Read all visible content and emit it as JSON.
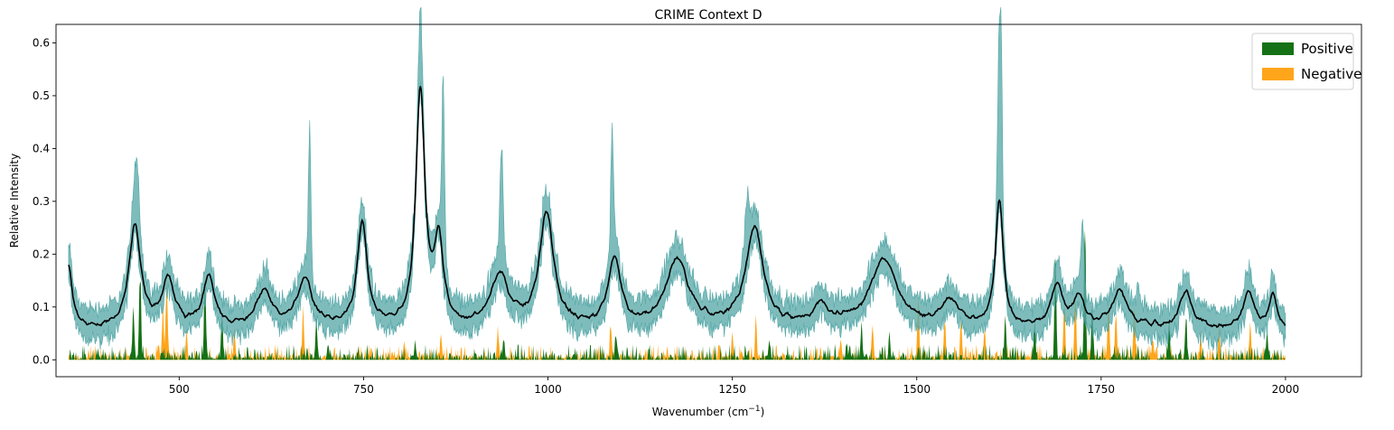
{
  "chart_data": {
    "type": "area",
    "title": "CRIME Context D",
    "xlabel": "Wavenumber (cm",
    "xlabel_sup": "−1",
    "xlabel_close": ")",
    "ylabel": "Relative Intensity",
    "xlim": [
      333,
      2103
    ],
    "ylim": [
      -0.032,
      0.635
    ],
    "xticks": [
      500,
      750,
      1000,
      1250,
      1500,
      1750,
      2000
    ],
    "xtick_labels": [
      "500",
      "750",
      "1000",
      "1250",
      "1500",
      "1750",
      "2000"
    ],
    "yticks": [
      0.0,
      0.1,
      0.2,
      0.3,
      0.4,
      0.5,
      0.6
    ],
    "ytick_labels": [
      "0.0",
      "0.1",
      "0.2",
      "0.3",
      "0.4",
      "0.5",
      "0.6"
    ],
    "grid": false,
    "legend": {
      "placement": "top-right",
      "entries": [
        {
          "label": "Positive",
          "color": "#157115"
        },
        {
          "label": "Negative",
          "color": "#ffa51a"
        }
      ]
    },
    "colors": {
      "mean_line": "#000000",
      "band_fill": "#5aa9a9",
      "band_edge": "#3d9a9a",
      "positive": "#157115",
      "negative": "#ffa51a"
    },
    "x_range": [
      350,
      2000
    ],
    "mean_peaks": [
      {
        "x": 350,
        "y": 0.12,
        "w": 6
      },
      {
        "x": 440,
        "y": 0.2,
        "w": 9
      },
      {
        "x": 485,
        "y": 0.09,
        "w": 10
      },
      {
        "x": 540,
        "y": 0.1,
        "w": 9
      },
      {
        "x": 615,
        "y": 0.07,
        "w": 12
      },
      {
        "x": 670,
        "y": 0.09,
        "w": 12
      },
      {
        "x": 748,
        "y": 0.2,
        "w": 8
      },
      {
        "x": 827,
        "y": 0.46,
        "w": 7
      },
      {
        "x": 852,
        "y": 0.16,
        "w": 7
      },
      {
        "x": 935,
        "y": 0.1,
        "w": 14
      },
      {
        "x": 998,
        "y": 0.22,
        "w": 11
      },
      {
        "x": 1090,
        "y": 0.13,
        "w": 10
      },
      {
        "x": 1175,
        "y": 0.13,
        "w": 18
      },
      {
        "x": 1280,
        "y": 0.19,
        "w": 14
      },
      {
        "x": 1370,
        "y": 0.04,
        "w": 12
      },
      {
        "x": 1455,
        "y": 0.13,
        "w": 22
      },
      {
        "x": 1545,
        "y": 0.05,
        "w": 14
      },
      {
        "x": 1612,
        "y": 0.25,
        "w": 6
      },
      {
        "x": 1690,
        "y": 0.08,
        "w": 9
      },
      {
        "x": 1720,
        "y": 0.06,
        "w": 9
      },
      {
        "x": 1775,
        "y": 0.07,
        "w": 12
      },
      {
        "x": 1865,
        "y": 0.07,
        "w": 10
      },
      {
        "x": 1950,
        "y": 0.07,
        "w": 8
      },
      {
        "x": 1983,
        "y": 0.07,
        "w": 6
      }
    ],
    "mean_baseline": 0.058,
    "band_spikes": [
      {
        "x": 443,
        "y": 0.1,
        "w": 5
      },
      {
        "x": 677,
        "y": 0.26,
        "w": 2.5
      },
      {
        "x": 827,
        "y": 0.09,
        "w": 4
      },
      {
        "x": 858,
        "y": 0.32,
        "w": 2.5
      },
      {
        "x": 937,
        "y": 0.2,
        "w": 3
      },
      {
        "x": 1087,
        "y": 0.22,
        "w": 2.5
      },
      {
        "x": 1270,
        "y": 0.09,
        "w": 4
      },
      {
        "x": 1612,
        "y": 0.28,
        "w": 3
      },
      {
        "x": 1615,
        "y": 0.2,
        "w": 2
      },
      {
        "x": 1725,
        "y": 0.12,
        "w": 3
      },
      {
        "x": 1800,
        "y": 0.04,
        "w": 3
      }
    ],
    "attribution_spikes": [
      {
        "x": 447,
        "y": 0.21,
        "s": "pos"
      },
      {
        "x": 438,
        "y": 0.13,
        "s": "pos"
      },
      {
        "x": 478,
        "y": 0.12,
        "s": "neg"
      },
      {
        "x": 483,
        "y": 0.2,
        "s": "neg"
      },
      {
        "x": 510,
        "y": 0.06,
        "s": "neg"
      },
      {
        "x": 535,
        "y": 0.21,
        "s": "pos"
      },
      {
        "x": 558,
        "y": 0.11,
        "s": "pos"
      },
      {
        "x": 575,
        "y": 0.07,
        "s": "neg"
      },
      {
        "x": 668,
        "y": 0.11,
        "s": "neg"
      },
      {
        "x": 686,
        "y": 0.09,
        "s": "pos"
      },
      {
        "x": 702,
        "y": 0.04,
        "s": "pos"
      },
      {
        "x": 760,
        "y": 0.03,
        "s": "neg"
      },
      {
        "x": 805,
        "y": 0.04,
        "s": "neg"
      },
      {
        "x": 820,
        "y": 0.04,
        "s": "pos"
      },
      {
        "x": 855,
        "y": 0.06,
        "s": "neg"
      },
      {
        "x": 932,
        "y": 0.07,
        "s": "neg"
      },
      {
        "x": 940,
        "y": 0.05,
        "s": "pos"
      },
      {
        "x": 1085,
        "y": 0.08,
        "s": "neg"
      },
      {
        "x": 1092,
        "y": 0.06,
        "s": "pos"
      },
      {
        "x": 1250,
        "y": 0.06,
        "s": "neg"
      },
      {
        "x": 1282,
        "y": 0.09,
        "s": "neg"
      },
      {
        "x": 1300,
        "y": 0.04,
        "s": "pos"
      },
      {
        "x": 1397,
        "y": 0.05,
        "s": "neg"
      },
      {
        "x": 1405,
        "y": 0.04,
        "s": "pos"
      },
      {
        "x": 1425,
        "y": 0.08,
        "s": "pos"
      },
      {
        "x": 1440,
        "y": 0.09,
        "s": "neg"
      },
      {
        "x": 1463,
        "y": 0.06,
        "s": "pos"
      },
      {
        "x": 1502,
        "y": 0.14,
        "s": "neg"
      },
      {
        "x": 1538,
        "y": 0.09,
        "s": "neg"
      },
      {
        "x": 1560,
        "y": 0.1,
        "s": "neg"
      },
      {
        "x": 1592,
        "y": 0.08,
        "s": "neg"
      },
      {
        "x": 1620,
        "y": 0.09,
        "s": "pos"
      },
      {
        "x": 1660,
        "y": 0.08,
        "s": "pos"
      },
      {
        "x": 1688,
        "y": 0.25,
        "s": "pos"
      },
      {
        "x": 1700,
        "y": 0.14,
        "s": "neg"
      },
      {
        "x": 1715,
        "y": 0.14,
        "s": "neg"
      },
      {
        "x": 1728,
        "y": 0.32,
        "s": "pos"
      },
      {
        "x": 1738,
        "y": 0.13,
        "s": "pos"
      },
      {
        "x": 1760,
        "y": 0.14,
        "s": "neg"
      },
      {
        "x": 1770,
        "y": 0.12,
        "s": "neg"
      },
      {
        "x": 1795,
        "y": 0.13,
        "s": "neg"
      },
      {
        "x": 1820,
        "y": 0.05,
        "s": "neg"
      },
      {
        "x": 1842,
        "y": 0.09,
        "s": "pos"
      },
      {
        "x": 1865,
        "y": 0.11,
        "s": "pos"
      },
      {
        "x": 1885,
        "y": 0.06,
        "s": "neg"
      },
      {
        "x": 1910,
        "y": 0.08,
        "s": "neg"
      },
      {
        "x": 1952,
        "y": 0.08,
        "s": "neg"
      },
      {
        "x": 1975,
        "y": 0.07,
        "s": "pos"
      }
    ]
  }
}
